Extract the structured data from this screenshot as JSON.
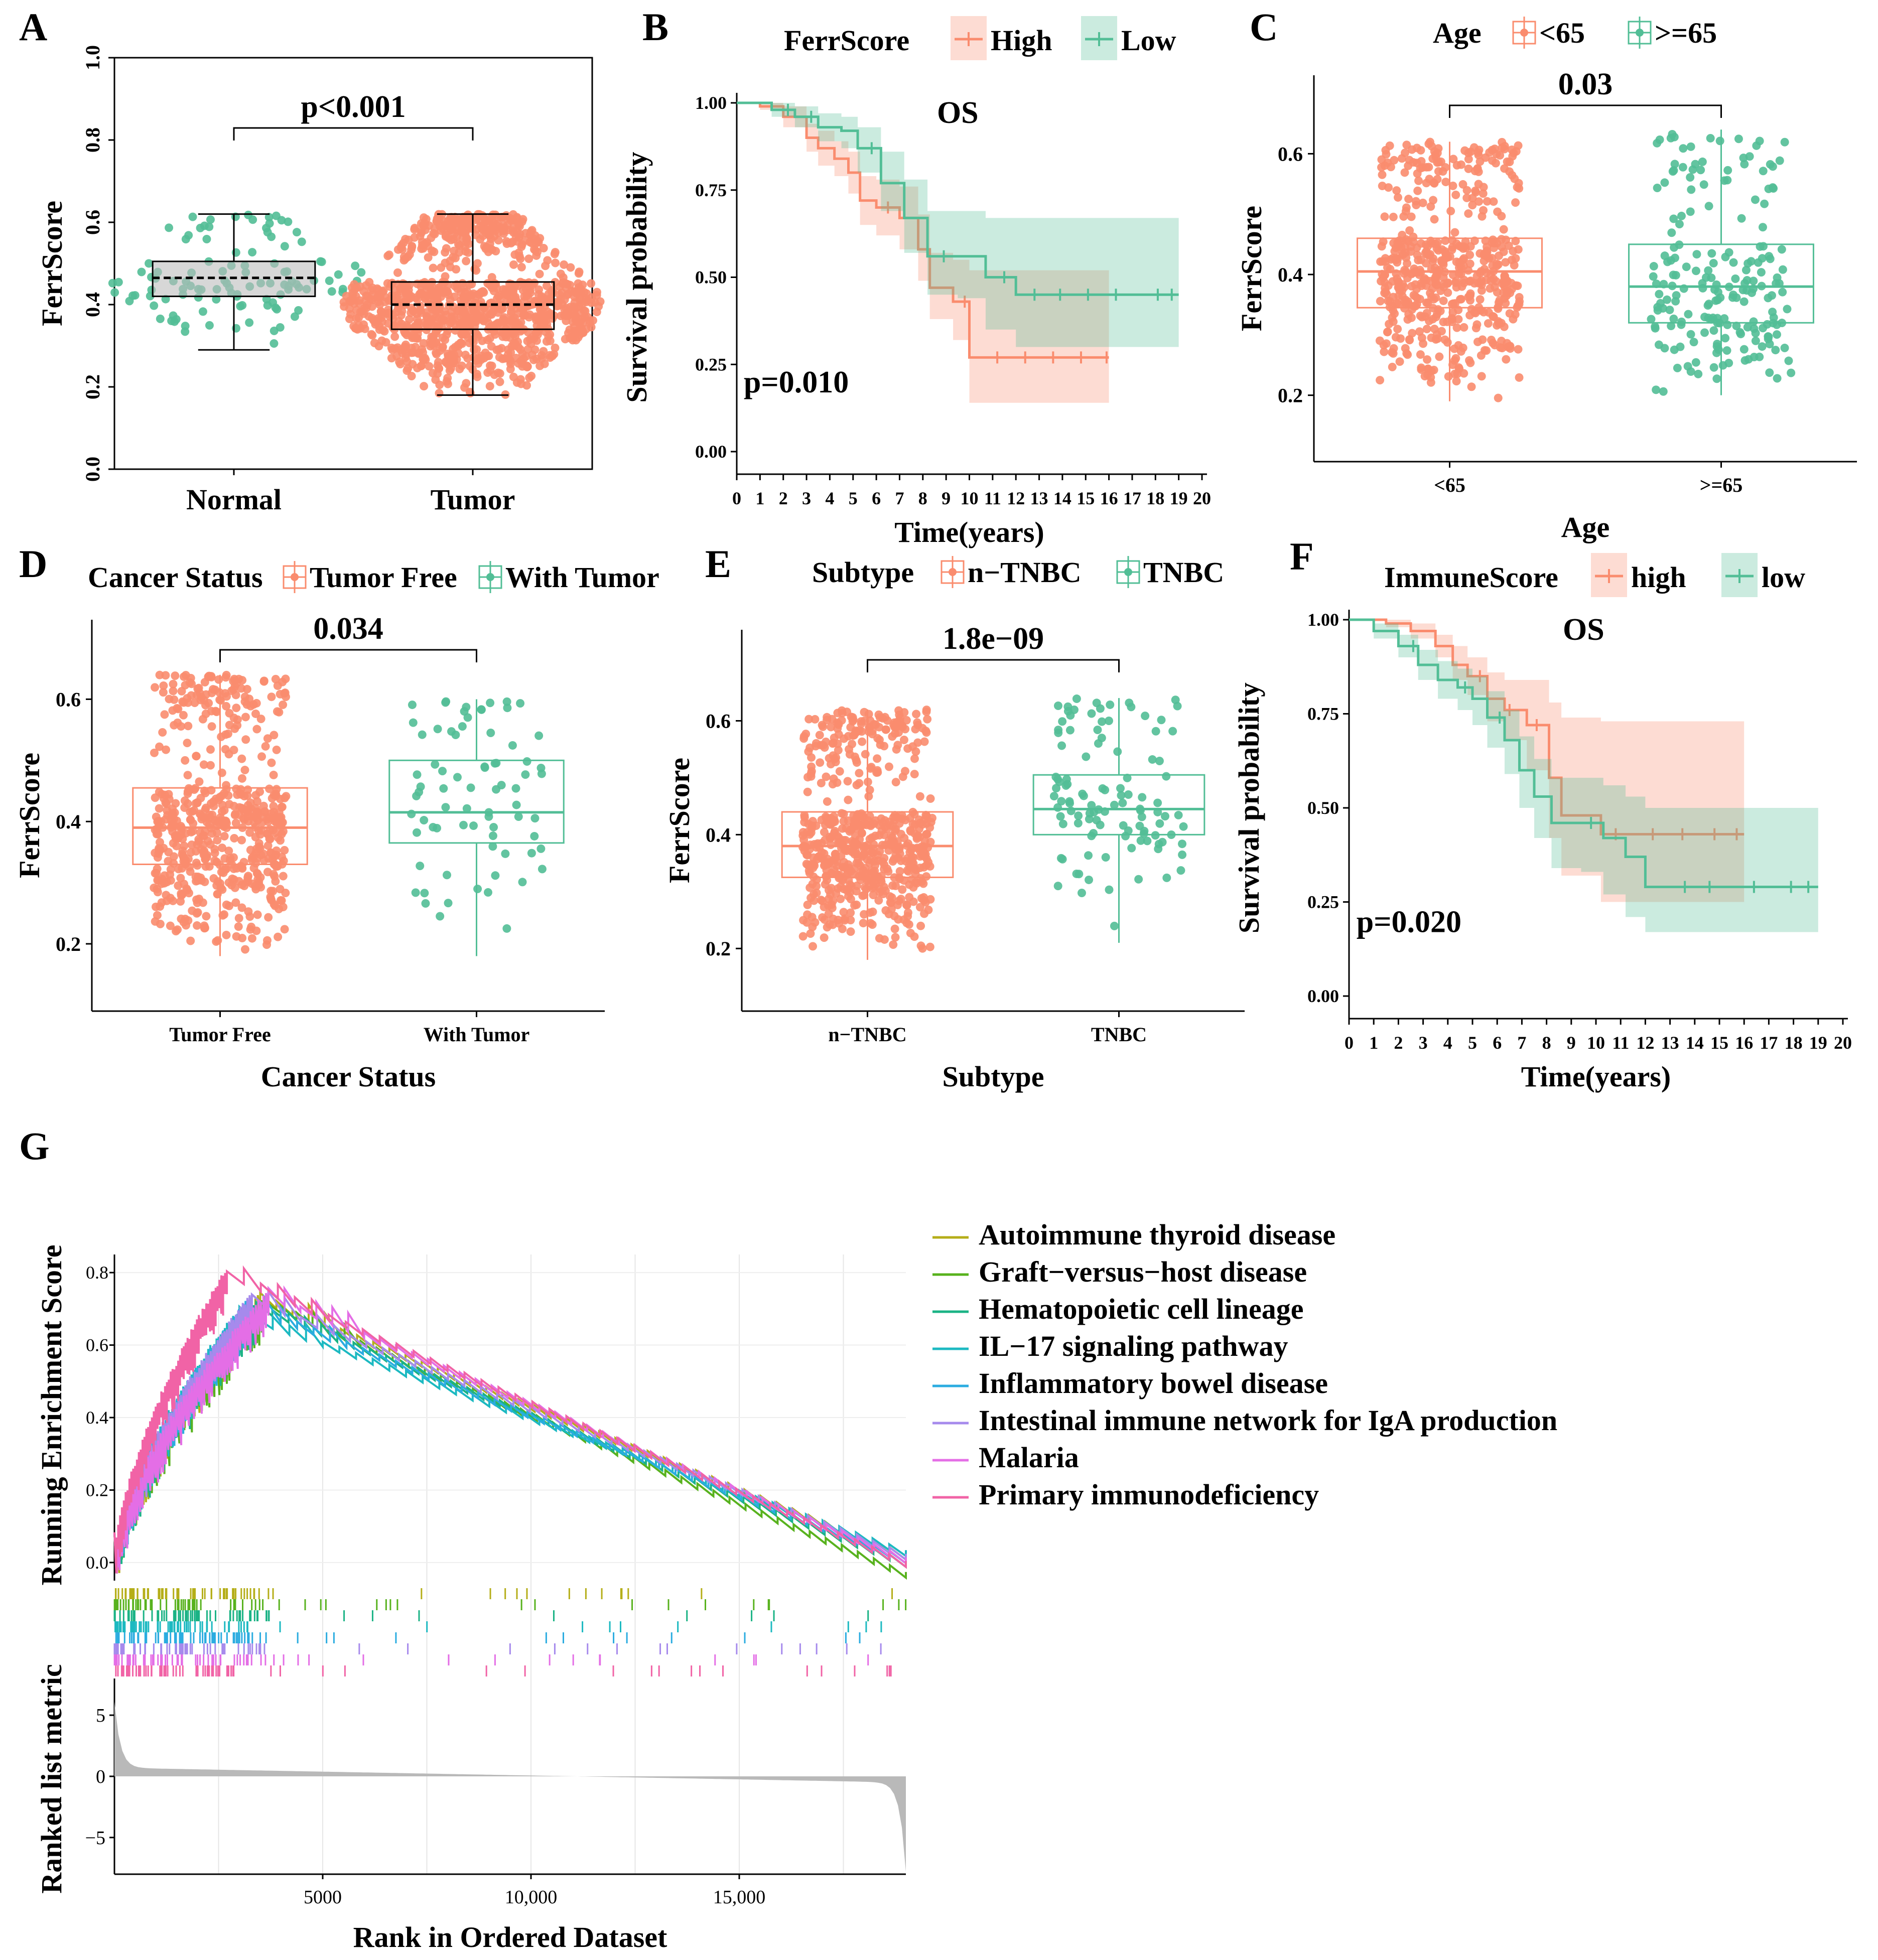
{
  "colors": {
    "orange": "#FA8C6E",
    "green": "#52BE96",
    "grey": "#b9b9b9"
  },
  "chart_data": [
    {
      "panel": "A",
      "type": "boxplot",
      "xlabel": "",
      "ylabel": "FerrScore",
      "ylim": [
        0,
        1
      ],
      "yticks": [
        "0.0",
        "0.2",
        "0.4",
        "0.6",
        "0.8",
        "1.0"
      ],
      "categories": [
        "Normal",
        "Tumor"
      ],
      "annotation": "p<0.001",
      "series": [
        {
          "name": "Normal",
          "color": "green",
          "min": 0.29,
          "q1": 0.42,
          "median": 0.465,
          "q3": 0.505,
          "max": 0.62,
          "n": 110
        },
        {
          "name": "Tumor",
          "color": "orange",
          "min": 0.18,
          "q1": 0.34,
          "median": 0.4,
          "q3": 0.455,
          "max": 0.62,
          "n": 1100
        }
      ]
    },
    {
      "panel": "B",
      "type": "line",
      "title": "OS",
      "legend_title": "FerrScore",
      "legend": [
        "High",
        "Low"
      ],
      "xlabel": "Time(years)",
      "ylabel": "Survival probability",
      "xlim": [
        0,
        20
      ],
      "ylim": [
        0,
        1
      ],
      "xticks": [
        "0",
        "1",
        "2",
        "3",
        "4",
        "5",
        "6",
        "7",
        "8",
        "9",
        "10",
        "11",
        "12",
        "13",
        "14",
        "15",
        "16",
        "17",
        "18",
        "19",
        "20"
      ],
      "yticks": [
        "0.00",
        "0.25",
        "0.50",
        "0.75",
        "1.00"
      ],
      "annotation": "p=0.010",
      "series": [
        {
          "name": "High",
          "color": "orange",
          "x": [
            0,
            1,
            2,
            3,
            3.5,
            4.2,
            4.8,
            5.3,
            6,
            7,
            7.8,
            8.3,
            9.3,
            10,
            11,
            16
          ],
          "y": [
            1,
            0.99,
            0.96,
            0.9,
            0.87,
            0.84,
            0.8,
            0.72,
            0.7,
            0.67,
            0.58,
            0.47,
            0.43,
            0.27,
            0.27,
            0.27
          ],
          "lower": [
            1,
            0.98,
            0.93,
            0.86,
            0.82,
            0.79,
            0.74,
            0.65,
            0.62,
            0.58,
            0.49,
            0.38,
            0.32,
            0.14,
            0.14,
            0.14
          ],
          "upper": [
            1,
            1,
            0.99,
            0.94,
            0.92,
            0.89,
            0.86,
            0.79,
            0.78,
            0.76,
            0.68,
            0.57,
            0.55,
            0.52,
            0.52,
            0.52
          ],
          "censor": [
            6.5,
            9.8,
            11.2,
            12.4,
            13.6,
            14.8,
            15.9
          ]
        },
        {
          "name": "Low",
          "color": "green",
          "x": [
            0,
            1.5,
            2.5,
            3.5,
            4.5,
            5.2,
            6.2,
            7.2,
            8.2,
            9.5,
            10.7,
            12,
            19
          ],
          "y": [
            1,
            0.98,
            0.96,
            0.93,
            0.92,
            0.87,
            0.77,
            0.67,
            0.56,
            0.56,
            0.5,
            0.45,
            0.45
          ],
          "lower": [
            1,
            0.96,
            0.93,
            0.89,
            0.87,
            0.8,
            0.69,
            0.57,
            0.45,
            0.44,
            0.35,
            0.3,
            0.3
          ],
          "upper": [
            1,
            1,
            0.99,
            0.97,
            0.96,
            0.93,
            0.86,
            0.78,
            0.69,
            0.69,
            0.67,
            0.67,
            0.67
          ],
          "censor": [
            2.2,
            3.2,
            5.8,
            8.9,
            11.5,
            12.8,
            13.9,
            15.1,
            16.3,
            18.1,
            18.7
          ]
        }
      ]
    },
    {
      "panel": "C",
      "type": "boxplot",
      "legend_title": "Age",
      "legend": [
        "<65",
        ">=65"
      ],
      "xlabel": "Age",
      "ylabel": "FerrScore",
      "ylim": [
        0.09,
        0.73
      ],
      "yticks": [
        "0.2",
        "0.4",
        "0.6"
      ],
      "categories": [
        "<65",
        ">=65"
      ],
      "annotation": "0.03",
      "series": [
        {
          "name": "<65",
          "color": "orange",
          "min": 0.19,
          "q1": 0.345,
          "median": 0.405,
          "q3": 0.46,
          "max": 0.62,
          "n": 560
        },
        {
          "name": ">=65",
          "color": "green",
          "min": 0.2,
          "q1": 0.32,
          "median": 0.38,
          "q3": 0.45,
          "max": 0.64,
          "n": 200
        }
      ]
    },
    {
      "panel": "D",
      "type": "boxplot",
      "legend_title": "Cancer Status",
      "legend": [
        "Tumor Free",
        "With Tumor"
      ],
      "xlabel": "Cancer Status",
      "ylabel": "FerrScore",
      "ylim": [
        0.09,
        0.73
      ],
      "yticks": [
        "0.2",
        "0.4",
        "0.6"
      ],
      "categories": [
        "Tumor Free",
        "With Tumor"
      ],
      "annotation": "0.034",
      "series": [
        {
          "name": "Tumor Free",
          "color": "orange",
          "min": 0.18,
          "q1": 0.33,
          "median": 0.39,
          "q3": 0.455,
          "max": 0.64,
          "n": 600
        },
        {
          "name": "With Tumor",
          "color": "green",
          "min": 0.18,
          "q1": 0.365,
          "median": 0.415,
          "q3": 0.5,
          "max": 0.6,
          "n": 75
        }
      ]
    },
    {
      "panel": "E",
      "type": "boxplot",
      "legend_title": "Subtype",
      "legend": [
        "n−TNBC",
        "TNBC"
      ],
      "xlabel": "Subtype",
      "ylabel": "FerrScore",
      "ylim": [
        0.09,
        0.76
      ],
      "yticks": [
        "0.2",
        "0.4",
        "0.6"
      ],
      "categories": [
        "n−TNBC",
        "TNBC"
      ],
      "annotation": "1.8e−09",
      "series": [
        {
          "name": "n-TNBC",
          "color": "orange",
          "min": 0.18,
          "q1": 0.325,
          "median": 0.38,
          "q3": 0.44,
          "max": 0.62,
          "n": 640
        },
        {
          "name": "TNBC",
          "color": "green",
          "min": 0.21,
          "q1": 0.4,
          "median": 0.445,
          "q3": 0.505,
          "max": 0.64,
          "n": 110
        }
      ]
    },
    {
      "panel": "F",
      "type": "line",
      "title": "OS",
      "legend_title": "ImmuneScore",
      "legend": [
        "high",
        "low"
      ],
      "xlabel": "Time(years)",
      "ylabel": "Survival probability",
      "xlim": [
        0,
        20
      ],
      "ylim": [
        0,
        1
      ],
      "xticks": [
        "0",
        "1",
        "2",
        "3",
        "4",
        "5",
        "6",
        "7",
        "8",
        "9",
        "10",
        "11",
        "12",
        "13",
        "14",
        "15",
        "16",
        "17",
        "18",
        "19",
        "20"
      ],
      "yticks": [
        "0.00",
        "0.25",
        "0.50",
        "0.75",
        "1.00"
      ],
      "annotation": "p=0.020",
      "series": [
        {
          "name": "high",
          "color": "orange",
          "x": [
            0,
            1.5,
            2.5,
            3.5,
            4.2,
            4.8,
            5.6,
            6.3,
            7.2,
            8.1,
            8.6,
            10.2,
            16
          ],
          "y": [
            1,
            0.99,
            0.97,
            0.93,
            0.88,
            0.85,
            0.79,
            0.76,
            0.72,
            0.58,
            0.48,
            0.43,
            0.43
          ],
          "lower": [
            1,
            0.98,
            0.95,
            0.9,
            0.84,
            0.8,
            0.73,
            0.68,
            0.6,
            0.42,
            0.32,
            0.25,
            0.25
          ],
          "upper": [
            1,
            1,
            0.99,
            0.96,
            0.93,
            0.9,
            0.86,
            0.84,
            0.84,
            0.78,
            0.74,
            0.73,
            0.73
          ],
          "censor": [
            5.3,
            6.5,
            7.6,
            10.8,
            12.3,
            13.5,
            14.8,
            15.7
          ]
        },
        {
          "name": "low",
          "color": "green",
          "x": [
            0,
            1,
            2,
            2.8,
            3.6,
            4.4,
            5,
            5.6,
            6.3,
            6.9,
            7.5,
            8.2,
            9.4,
            10.3,
            11.2,
            12,
            19
          ],
          "y": [
            1,
            0.97,
            0.93,
            0.88,
            0.84,
            0.82,
            0.79,
            0.74,
            0.68,
            0.6,
            0.53,
            0.46,
            0.46,
            0.42,
            0.37,
            0.29,
            0.29
          ],
          "lower": [
            1,
            0.95,
            0.9,
            0.84,
            0.79,
            0.76,
            0.72,
            0.66,
            0.59,
            0.5,
            0.42,
            0.34,
            0.33,
            0.27,
            0.21,
            0.17,
            0.17
          ],
          "upper": [
            1,
            0.99,
            0.96,
            0.92,
            0.89,
            0.87,
            0.85,
            0.81,
            0.76,
            0.69,
            0.63,
            0.58,
            0.58,
            0.56,
            0.53,
            0.5,
            0.5
          ],
          "censor": [
            2.6,
            4.7,
            6.1,
            9.8,
            13.6,
            14.6,
            16.4,
            17.9,
            18.6
          ]
        }
      ]
    },
    {
      "panel": "G",
      "type": "line",
      "subtype": "GSEA enrichment plot",
      "xlabel": "Rank in Ordered Dataset",
      "ylabel": "Running Enrichment Score",
      "ylabel2": "Ranked list metric",
      "xlim": [
        0,
        19000
      ],
      "xticks": [
        "5000",
        "10,000",
        "15,000"
      ],
      "xtick_values": [
        5000,
        10000,
        15000
      ],
      "ylim": [
        -0.05,
        0.85
      ],
      "yticks": [
        "0.0",
        "0.2",
        "0.4",
        "0.6",
        "0.8"
      ],
      "ylim2": [
        -8,
        8
      ],
      "yticks2": [
        "5",
        "0",
        "−5"
      ],
      "series": [
        {
          "name": "Autoimmune thyroid disease",
          "color": "#B5AE19",
          "peak_rank": 3500,
          "peak": 0.73,
          "end": 0.02
        },
        {
          "name": "Graft−versus−host disease",
          "color": "#58B21E",
          "peak_rank": 3600,
          "peak": 0.72,
          "end": -0.03
        },
        {
          "name": "Hematopoietic cell lineage",
          "color": "#1BB385",
          "peak_rank": 3400,
          "peak": 0.71,
          "end": 0.0
        },
        {
          "name": "IL−17 signaling pathway",
          "color": "#1CB9C1",
          "peak_rank": 3000,
          "peak": 0.69,
          "end": 0.03
        },
        {
          "name": "Inflammatory bowel disease",
          "color": "#2BACE0",
          "peak_rank": 3200,
          "peak": 0.71,
          "end": 0.01
        },
        {
          "name": "Intestinal immune network for IgA production",
          "color": "#A68AEC",
          "peak_rank": 3300,
          "peak": 0.73,
          "end": 0.02
        },
        {
          "name": "Malaria",
          "color": "#E46EE6",
          "peak_rank": 3700,
          "peak": 0.74,
          "end": 0.01
        },
        {
          "name": "Primary immunodeficiency",
          "color": "#F163A6",
          "peak_rank": 2700,
          "peak": 0.8,
          "end": 0.0
        }
      ]
    }
  ]
}
